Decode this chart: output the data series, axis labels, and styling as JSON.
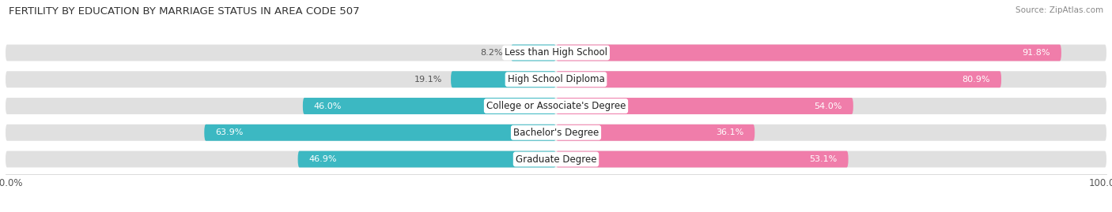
{
  "title": "FERTILITY BY EDUCATION BY MARRIAGE STATUS IN AREA CODE 507",
  "source": "Source: ZipAtlas.com",
  "categories": [
    "Less than High School",
    "High School Diploma",
    "College or Associate's Degree",
    "Bachelor's Degree",
    "Graduate Degree"
  ],
  "married": [
    8.2,
    19.1,
    46.0,
    63.9,
    46.9
  ],
  "unmarried": [
    91.8,
    80.9,
    54.0,
    36.1,
    53.1
  ],
  "married_color": "#3cb8c2",
  "unmarried_color": "#f07daa",
  "bar_bg_color": "#e0e0e0",
  "bar_height": 0.62,
  "figsize": [
    14.06,
    2.69
  ],
  "dpi": 100,
  "title_color": "#333333",
  "source_color": "#888888",
  "label_fontsize": 8.0,
  "title_fontsize": 9.5,
  "source_fontsize": 7.5,
  "legend_fontsize": 8.5,
  "value_inside_color": "white",
  "value_outside_color": "#555555",
  "cat_label_fontsize": 8.5
}
